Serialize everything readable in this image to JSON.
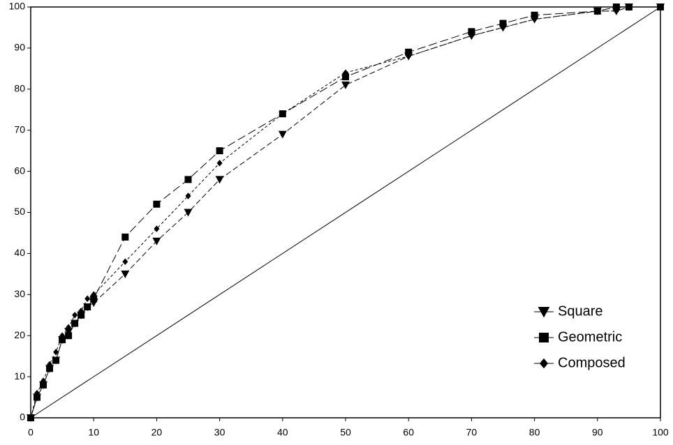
{
  "chart_data": {
    "type": "line",
    "x": [
      0,
      1,
      2,
      3,
      4,
      5,
      6,
      7,
      8,
      9,
      10,
      15,
      20,
      25,
      30,
      40,
      50,
      60,
      70,
      75,
      80,
      90,
      93,
      95,
      100
    ],
    "series": [
      {
        "name": "Square",
        "color": "#000000",
        "marker": "triangle-down",
        "values": [
          0,
          5,
          8,
          12,
          14,
          19,
          21,
          23,
          25,
          27,
          28,
          35,
          43,
          50,
          58,
          69,
          81,
          88,
          93,
          95,
          97,
          99,
          99,
          100,
          100
        ]
      },
      {
        "name": "Geometric",
        "color": "#000000",
        "marker": "square",
        "values": [
          0,
          5,
          8,
          12,
          14,
          19,
          20,
          23,
          25,
          27,
          29,
          44,
          52,
          58,
          65,
          74,
          83,
          89,
          94,
          96,
          98,
          99,
          100,
          100,
          100
        ]
      },
      {
        "name": "Composed",
        "color": "#000000",
        "marker": "diamond",
        "values": [
          0,
          6,
          9,
          13,
          16,
          20,
          22,
          25,
          26,
          29,
          30,
          38,
          46,
          54,
          62,
          74,
          84,
          88,
          93,
          95,
          97,
          99,
          99,
          100,
          100
        ]
      }
    ],
    "xlim": [
      0,
      100
    ],
    "ylim": [
      0,
      100
    ],
    "xticks": [
      0,
      10,
      20,
      30,
      40,
      50,
      60,
      70,
      80,
      90,
      100
    ],
    "yticks": [
      0,
      10,
      20,
      30,
      40,
      50,
      60,
      70,
      80,
      90,
      100
    ],
    "legend": "lower right"
  }
}
